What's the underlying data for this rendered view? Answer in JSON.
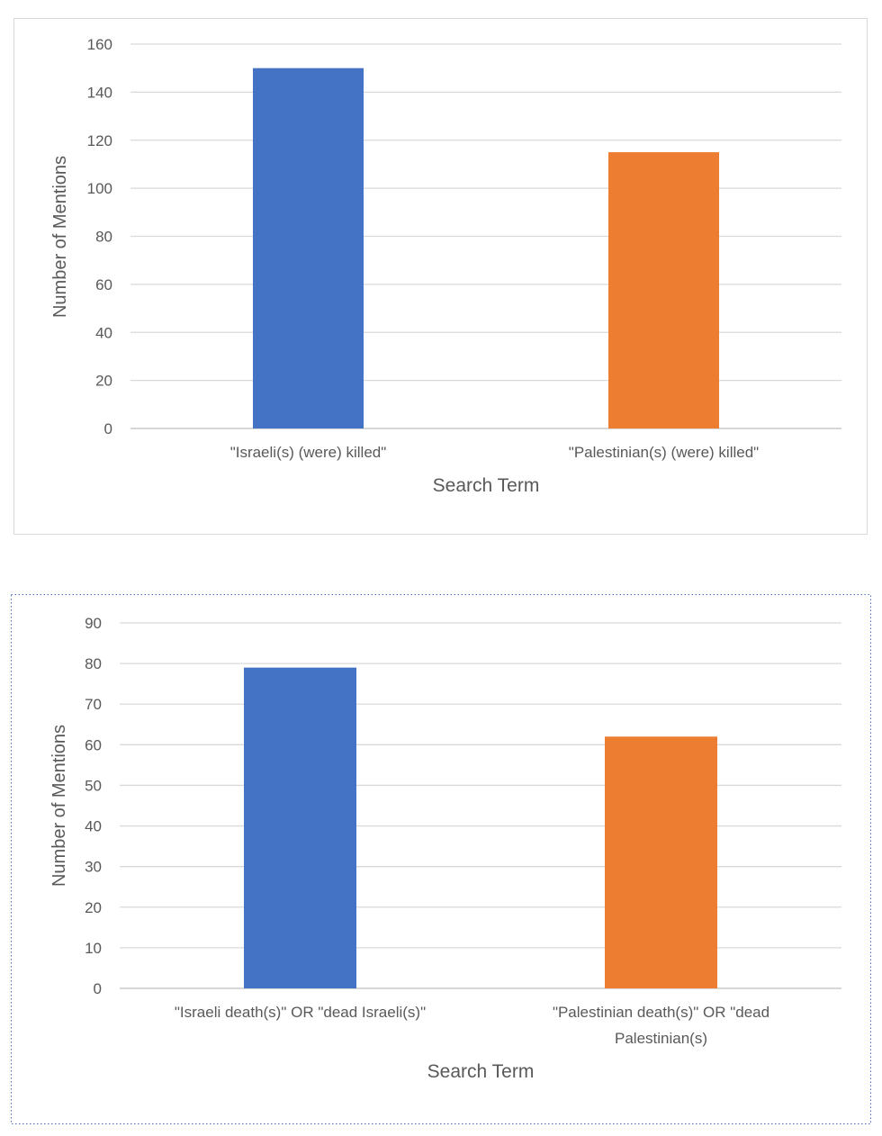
{
  "colors": {
    "series1": "#4472C4",
    "series2": "#ED7D31",
    "grid": "#D9D9D9",
    "text": "#595959"
  },
  "chart_data": [
    {
      "type": "bar",
      "title": "",
      "categories": [
        "\"Israeli(s) (were) killed\"",
        "\"Palestinian(s) (were) killed\""
      ],
      "category_lines": [
        [
          "\"Israeli(s) (were) killed\""
        ],
        [
          "\"Palestinian(s) (were) killed\""
        ]
      ],
      "values": [
        150,
        115
      ],
      "xlabel": "Search Term",
      "ylabel": "Number of Mentions",
      "ylim": [
        0,
        160
      ],
      "yticks": [
        "0",
        "20",
        "40",
        "60",
        "80",
        "100",
        "120",
        "140",
        "160"
      ],
      "grid": true,
      "legend": "none"
    },
    {
      "type": "bar",
      "title": "",
      "categories": [
        "\"Israeli death(s)\" OR \"dead Israeli(s)\"",
        "\"Palestinian death(s)\" OR \"dead Palestinian(s)"
      ],
      "category_lines": [
        [
          "\"Israeli death(s)\" OR \"dead Israeli(s)\""
        ],
        [
          "\"Palestinian death(s)\" OR \"dead",
          "Palestinian(s)"
        ]
      ],
      "values": [
        79,
        62
      ],
      "xlabel": "Search Term",
      "ylabel": "Number of Mentions",
      "ylim": [
        0,
        90
      ],
      "yticks": [
        "0",
        "10",
        "20",
        "30",
        "40",
        "50",
        "60",
        "70",
        "80",
        "90"
      ],
      "grid": true,
      "legend": "none"
    }
  ]
}
